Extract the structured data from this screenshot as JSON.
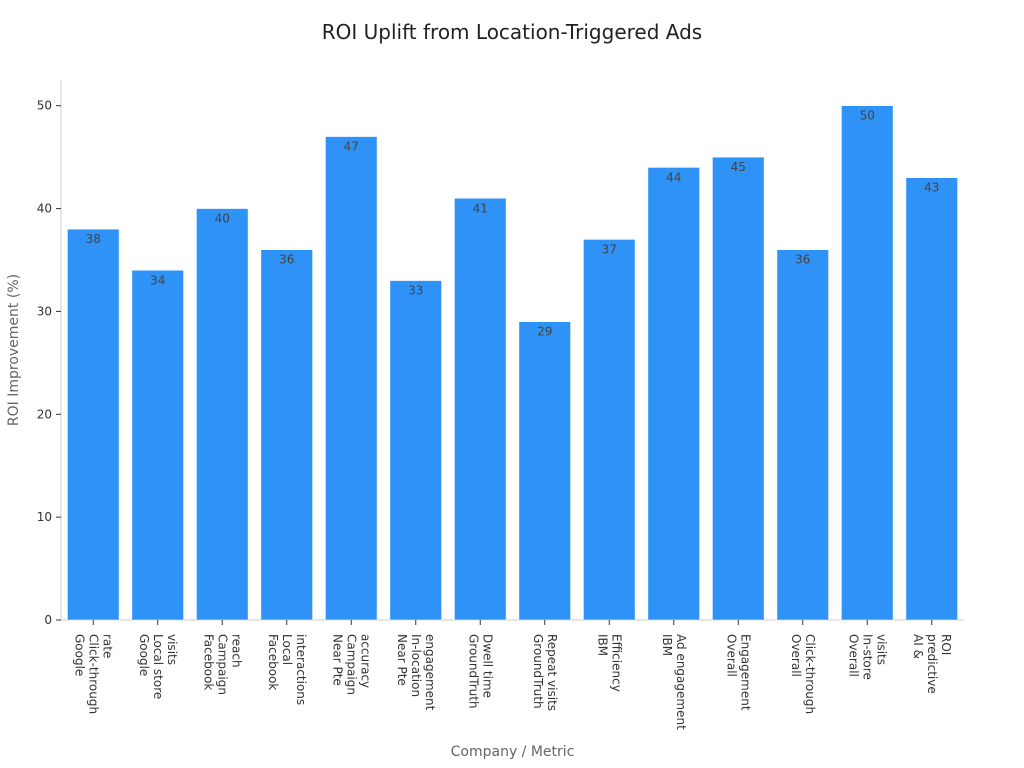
{
  "colors": {
    "bar": "#2e92f7",
    "axis": "#cccccc"
  },
  "chart_data": {
    "type": "bar",
    "title": "ROI Uplift from Location-Triggered Ads",
    "xlabel": "Company / Metric",
    "ylabel": "ROI Improvement (%)",
    "ylim": [
      0,
      52.5
    ],
    "yticks": [
      0,
      10,
      20,
      30,
      40,
      50
    ],
    "grid": false,
    "categories": [
      [
        "Google",
        "Click-through",
        "rate"
      ],
      [
        "Google",
        "Local store",
        "visits"
      ],
      [
        "Facebook",
        "Campaign",
        "reach"
      ],
      [
        "Facebook",
        "Local",
        "interactions"
      ],
      [
        "Near Pte",
        "Campaign",
        "accuracy"
      ],
      [
        "Near Pte",
        "In-location",
        "engagement"
      ],
      [
        "GroundTruth",
        "Dwell time"
      ],
      [
        "GroundTruth",
        "Repeat visits"
      ],
      [
        "IBM",
        "Efficiency"
      ],
      [
        "IBM",
        "Ad engagement"
      ],
      [
        "Overall",
        "Engagement"
      ],
      [
        "Overall",
        "Click-through"
      ],
      [
        "Overall",
        "In-store",
        "visits"
      ],
      [
        "AI &",
        "predictive",
        "ROI"
      ]
    ],
    "values": [
      38,
      34,
      40,
      36,
      47,
      33,
      41,
      29,
      37,
      44,
      45,
      36,
      50,
      43
    ]
  }
}
